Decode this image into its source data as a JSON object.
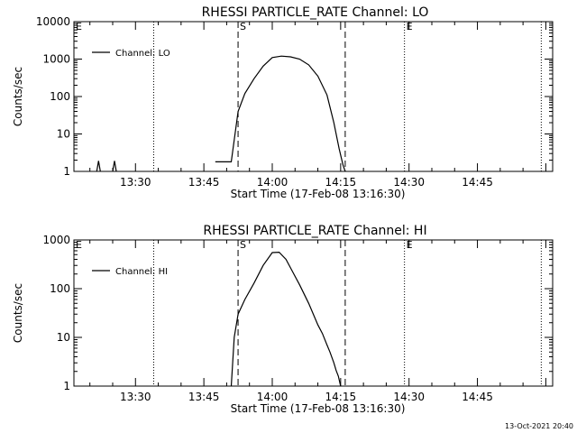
{
  "footer": {
    "timestamp": "13-Oct-2021 20:40"
  },
  "chart_data": [
    {
      "type": "line",
      "title": "RHESSI PARTICLE_RATE Channel: LO",
      "xlabel": "Start Time (17-Feb-08 13:16:30)",
      "ylabel": "Counts/sec",
      "yscale": "log",
      "xlim": [
        "13:16:30",
        "15:01:30"
      ],
      "ylim": [
        1,
        10000
      ],
      "x_ticks": [
        "13:30",
        "13:45",
        "14:00",
        "14:15",
        "14:30",
        "14:45"
      ],
      "y_ticks": [
        {
          "value": 1,
          "label": "1"
        },
        {
          "value": 10,
          "label": "10"
        },
        {
          "value": 100,
          "label": "100"
        },
        {
          "value": 1000,
          "label": "1000"
        },
        {
          "value": 10000,
          "label": "10000"
        }
      ],
      "legend": {
        "position": "top-left",
        "entries": [
          "Channel: LO"
        ]
      },
      "markers": [
        {
          "time": "13:16:30",
          "label": "E",
          "style": "dotted"
        },
        {
          "time": "13:34:00",
          "label": "",
          "style": "dotted"
        },
        {
          "time": "13:52:30",
          "label": "S",
          "style": "dashed"
        },
        {
          "time": "14:16:00",
          "label": "",
          "style": "dashed"
        },
        {
          "time": "14:29:00",
          "label": "E",
          "style": "dotted"
        },
        {
          "time": "14:59:00",
          "label": "",
          "style": "dotted"
        }
      ],
      "series": [
        {
          "name": "Channel: LO",
          "segments": [
            {
              "t": [
                "13:21:30",
                "13:21:54",
                "13:22:18"
              ],
              "y": [
                1,
                1.9,
                1
              ]
            },
            {
              "t": [
                "13:25:00",
                "13:25:24",
                "13:25:48"
              ],
              "y": [
                1,
                1.9,
                1
              ]
            },
            {
              "t": [
                "13:47:30",
                "13:51:00",
                "13:52:30",
                "13:54:00",
                "13:56:00",
                "13:58:00",
                "14:00:00",
                "14:02:00",
                "14:04:00",
                "14:06:00",
                "14:08:00",
                "14:10:00",
                "14:12:00",
                "14:13:30",
                "14:14:40",
                "14:15:30",
                "14:16:00"
              ],
              "y": [
                1.8,
                1.8,
                40,
                120,
                300,
                650,
                1100,
                1200,
                1150,
                1000,
                700,
                350,
                110,
                20,
                4,
                1.5,
                1
              ]
            }
          ]
        }
      ]
    },
    {
      "type": "line",
      "title": "RHESSI PARTICLE_RATE Channel: HI",
      "xlabel": "Start Time (17-Feb-08 13:16:30)",
      "ylabel": "Counts/sec",
      "yscale": "log",
      "xlim": [
        "13:16:30",
        "15:01:30"
      ],
      "ylim": [
        1,
        1000
      ],
      "x_ticks": [
        "13:30",
        "13:45",
        "14:00",
        "14:15",
        "14:30",
        "14:45"
      ],
      "y_ticks": [
        {
          "value": 1,
          "label": "1"
        },
        {
          "value": 10,
          "label": "10"
        },
        {
          "value": 100,
          "label": "100"
        },
        {
          "value": 1000,
          "label": "1000"
        }
      ],
      "legend": {
        "position": "top-left",
        "entries": [
          "Channel: HI"
        ]
      },
      "markers": [
        {
          "time": "13:16:30",
          "label": "E",
          "style": "dotted"
        },
        {
          "time": "13:34:00",
          "label": "",
          "style": "dotted"
        },
        {
          "time": "13:52:30",
          "label": "S",
          "style": "dashed"
        },
        {
          "time": "14:16:00",
          "label": "",
          "style": "dashed"
        },
        {
          "time": "14:29:00",
          "label": "E",
          "style": "dotted"
        },
        {
          "time": "14:59:00",
          "label": "",
          "style": "dotted"
        }
      ],
      "series": [
        {
          "name": "Channel: HI",
          "segments": [
            {
              "t": [
                "13:51:00",
                "13:51:40",
                "13:52:30",
                "13:54:00",
                "13:56:00",
                "13:58:00",
                "14:00:00",
                "14:01:30",
                "14:03:00",
                "14:04:30",
                "14:06:00",
                "14:08:00",
                "14:10:00",
                "14:11:00",
                "14:12:00",
                "14:12:40",
                "14:13:30",
                "14:14:00",
                "14:14:30",
                "14:15:00"
              ],
              "y": [
                1,
                10,
                30,
                60,
                130,
                300,
                550,
                560,
                400,
                220,
                120,
                50,
                18,
                12,
                7,
                5,
                3,
                2.1,
                1.6,
                1
              ]
            }
          ]
        }
      ]
    }
  ]
}
